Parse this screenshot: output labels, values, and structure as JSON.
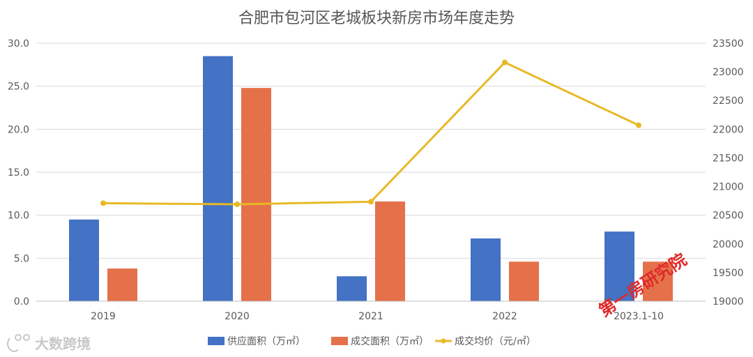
{
  "chart_data": {
    "type": "bar",
    "title": "合肥市包河区老城板块新房市场年度走势",
    "categories": [
      "2019",
      "2020",
      "2021",
      "2022",
      "2023.1-10"
    ],
    "series": [
      {
        "name": "供应面积（万㎡）",
        "type": "bar",
        "axis": "left",
        "color": "#4472C4",
        "values": [
          9.5,
          28.5,
          2.9,
          7.3,
          8.1
        ]
      },
      {
        "name": "成交面积（万㎡）",
        "type": "bar",
        "axis": "left",
        "color": "#E5714A",
        "values": [
          3.8,
          24.8,
          11.6,
          4.6,
          4.6
        ]
      },
      {
        "name": "成交均价（元/㎡）",
        "type": "line",
        "axis": "right",
        "color": "#E8B925",
        "values": [
          20710,
          20690,
          20735,
          23165,
          22070
        ]
      }
    ],
    "y_left": {
      "min": 0,
      "max": 30,
      "ticks": [
        "0.0",
        "5.0",
        "10.0",
        "15.0",
        "20.0",
        "25.0",
        "30.0"
      ]
    },
    "y_right": {
      "min": 19000,
      "max": 23500,
      "ticks": [
        "19000",
        "19500",
        "20000",
        "20500",
        "21000",
        "21500",
        "22000",
        "22500",
        "23000",
        "23500"
      ]
    },
    "grid": true,
    "legend_position": "bottom"
  },
  "watermark": {
    "text": "大数跨境"
  },
  "stamp": {
    "text": "第一房研究院",
    "color": "#e02a2a"
  }
}
